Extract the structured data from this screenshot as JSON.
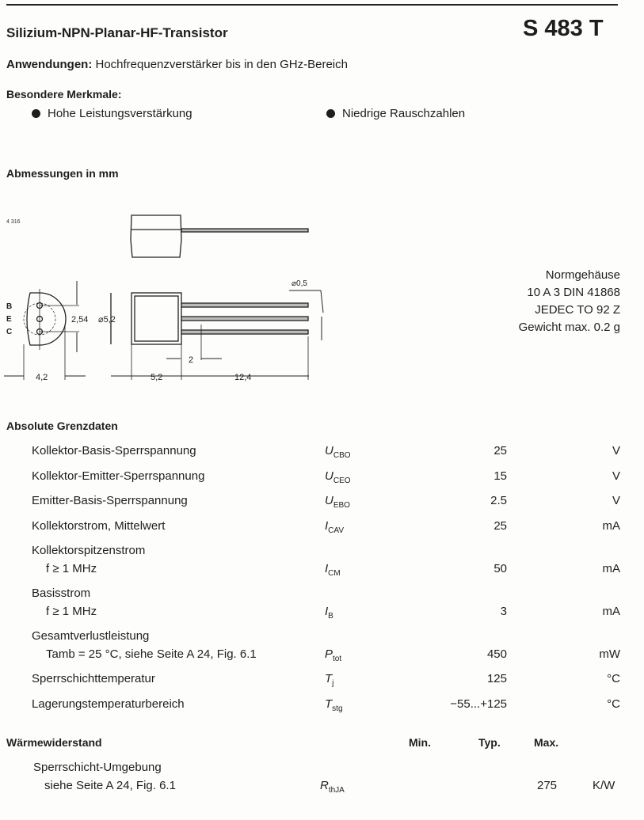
{
  "header": {
    "title": "Silizium-NPN-Planar-HF-Transistor",
    "part_number": "S 483 T"
  },
  "applications": {
    "label": "Anwendungen:",
    "text": "Hochfrequenzverstärker bis in den GHz-Bereich"
  },
  "features": {
    "heading": "Besondere Merkmale:",
    "items": [
      "Hohe Leistungsverstärkung",
      "Niedrige Rauschzahlen"
    ]
  },
  "dimensions": {
    "heading": "Abmessungen in mm",
    "drawing_id": "4 316",
    "pins": [
      "B",
      "E",
      "C"
    ],
    "labels": {
      "pitch": "2,54",
      "diameter": "⌀5,2",
      "lead_diameter": "⌀0,5",
      "width": "4,2",
      "body_length": "5,2",
      "lead_step": "2",
      "lead_length": "12,4"
    }
  },
  "package": {
    "lines": [
      "Normgehäuse",
      "10 A 3 DIN 41868",
      "JEDEC TO 92 Z",
      "Gewicht max. 0.2 g"
    ]
  },
  "absolute_ratings": {
    "heading": "Absolute Grenzdaten",
    "rows": [
      {
        "label": "Kollektor-Basis-Sperrspannung",
        "sub": "",
        "sym": "U",
        "sym_sub": "CBO",
        "value": "25",
        "unit": "V"
      },
      {
        "label": "Kollektor-Emitter-Sperrspannung",
        "sub": "",
        "sym": "U",
        "sym_sub": "CEO",
        "value": "15",
        "unit": "V"
      },
      {
        "label": "Emitter-Basis-Sperrspannung",
        "sub": "",
        "sym": "U",
        "sym_sub": "EBO",
        "value": "2.5",
        "unit": "V"
      },
      {
        "label": "Kollektorstrom, Mittelwert",
        "sub": "",
        "sym": "I",
        "sym_sub": "CAV",
        "value": "25",
        "unit": "mA"
      },
      {
        "label": "Kollektorspitzenstrom",
        "sub": "f ≥ 1 MHz",
        "sym": "I",
        "sym_sub": "CM",
        "value": "50",
        "unit": "mA"
      },
      {
        "label": "Basisstrom",
        "sub": "f ≥ 1 MHz",
        "sym": "I",
        "sym_sub": "B",
        "value": "3",
        "unit": "mA"
      },
      {
        "label": "Gesamtverlustleistung",
        "sub": "Tamb = 25 °C, siehe Seite A 24, Fig. 6.1",
        "sym": "P",
        "sym_sub": "tot",
        "value": "450",
        "unit": "mW"
      },
      {
        "label": "Sperrschichttemperatur",
        "sub": "",
        "sym": "T",
        "sym_sub": "j",
        "value": "125",
        "unit": "°C"
      },
      {
        "label": "Lagerungstemperaturbereich",
        "sub": "",
        "sym": "T",
        "sym_sub": "stg",
        "value": "−55...+125",
        "unit": "°C"
      }
    ]
  },
  "thermal": {
    "heading": "Wärmewiderstand",
    "columns": [
      "Min.",
      "Typ.",
      "Max."
    ],
    "row": {
      "label": "Sperrschicht-Umgebung",
      "sub": "siehe Seite A 24, Fig. 6.1",
      "sym": "R",
      "sym_sub": "thJA",
      "max": "275",
      "unit": "K/W"
    }
  }
}
